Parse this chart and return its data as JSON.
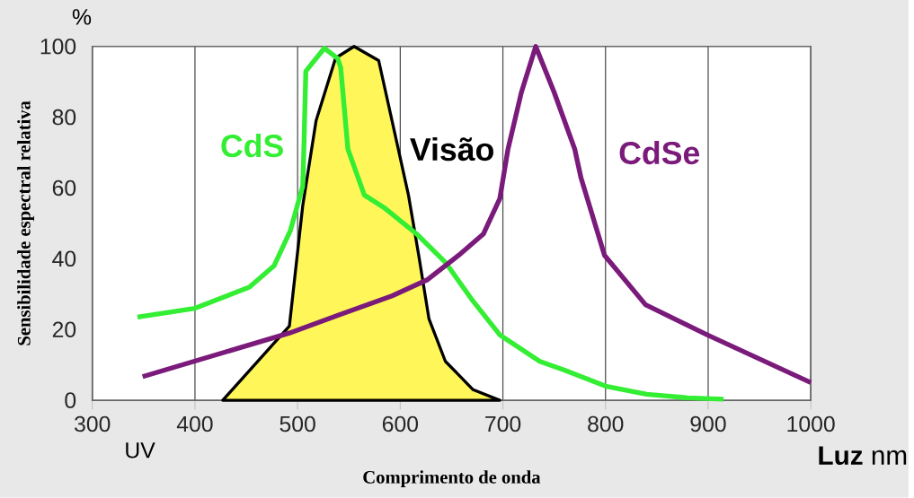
{
  "chart_data": {
    "type": "line",
    "xlabel": "Comprimento de onda",
    "ylabel": "Sensibilidade espectral relativa",
    "xlim": [
      300,
      1000
    ],
    "ylim": [
      0,
      100
    ],
    "xticks": [
      300,
      400,
      500,
      600,
      700,
      800,
      900,
      1000
    ],
    "yticks": [
      0,
      20,
      40,
      60,
      80,
      100
    ],
    "grid": "x",
    "legend": false,
    "annotations": [
      "%",
      "UV",
      "**Luz** nm"
    ],
    "series": [
      {
        "name": "CdS",
        "color": "#33ee33",
        "x": [
          344,
          400,
          453,
          477,
          493,
          505,
          506,
          508,
          526,
          539,
          542,
          549,
          565,
          584,
          616,
          644,
          671,
          697,
          736,
          760,
          800,
          840,
          880,
          915
        ],
        "values": [
          23.5,
          26,
          32,
          38,
          48,
          60.5,
          70,
          93,
          99.5,
          96.6,
          94,
          71,
          58,
          54.5,
          47,
          39,
          28,
          18.5,
          11,
          8.5,
          4,
          1.7,
          0.7,
          0.3
        ]
      },
      {
        "name": "Visão",
        "type": "area",
        "color": "#000000",
        "x": [
          427,
          492,
          505,
          518,
          537,
          555,
          579,
          592,
          608,
          618,
          628,
          644,
          671,
          697
        ],
        "values": [
          0,
          21,
          55,
          79,
          96.7,
          100,
          96,
          79,
          58,
          41,
          23,
          11,
          3,
          0
        ]
      },
      {
        "name": "CdSe",
        "color": "#7a1a7a",
        "x": [
          349,
          492,
          539,
          592,
          626,
          657,
          681,
          697,
          705,
          718,
          732,
          750,
          770,
          776,
          799,
          839,
          899,
          1000
        ],
        "values": [
          6.7,
          19,
          24,
          29.5,
          34,
          41,
          47,
          57,
          71,
          87,
          100,
          87,
          71,
          63,
          41,
          27,
          18.5,
          5
        ]
      }
    ]
  }
}
